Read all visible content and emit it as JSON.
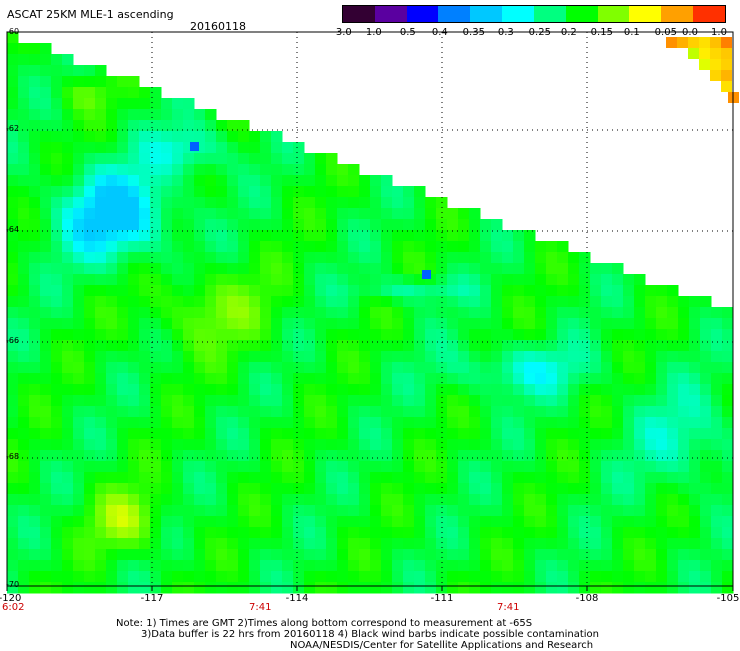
{
  "header": {
    "title": "ASCAT 25KM MLE-1 ascending",
    "date": "20160118"
  },
  "colorbar": {
    "labels": [
      "-3.0",
      "-1.0",
      "-0.5",
      "-0.4",
      "-0.35",
      "-0.3",
      "-0.25",
      "-0.2",
      "-0.15",
      "-0.1",
      "-0.05",
      "0.0",
      "1.0"
    ],
    "colors": [
      "#330033",
      "#5a00a0",
      "#0000ff",
      "#0080ff",
      "#00c8ff",
      "#00ffff",
      "#00ff80",
      "#00ff00",
      "#80ff00",
      "#ffff00",
      "#ffa000",
      "#ff3000"
    ]
  },
  "map": {
    "lat_labels": [
      "-60",
      "-62",
      "-64",
      "-66",
      "-68",
      "-70"
    ],
    "lon_labels": [
      "-120",
      "-117",
      "-114",
      "-111",
      "-108",
      "-105"
    ],
    "time_labels": [
      "6:02",
      "7:41",
      "7:41"
    ],
    "lon_range": [
      -120,
      -105
    ],
    "lat_range": [
      -70,
      -60
    ],
    "land_color": "#ffffff"
  },
  "footer": {
    "line1": "Note: 1) Times are GMT 2)Times along bottom correspond to measurement at -65S",
    "line2": "3)Data buffer is 22 hrs from 20160118 4) Black wind barbs indicate possible contamination",
    "line3": "NOAA/NESDIS/Center for Satellite Applications and Research"
  }
}
